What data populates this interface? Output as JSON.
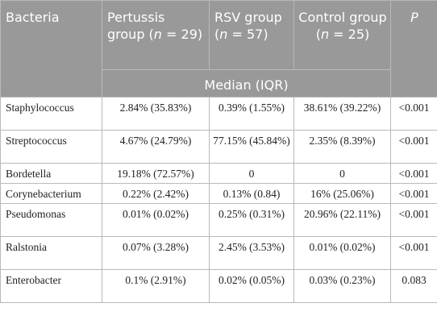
{
  "header": {
    "bacteria": "Bacteria",
    "pertussis": {
      "pre": "Pertussis group (",
      "n": "n",
      "post": " = 29)"
    },
    "rsv": {
      "pre": "RSV group (",
      "n": "n",
      "post": " = 57)"
    },
    "control": {
      "pre": "Control group (",
      "n": "n",
      "post": " = 25)"
    },
    "p": "P",
    "median_iqr": "Median (IQR)"
  },
  "rows": [
    {
      "bacteria": "Staphylococcus",
      "pertussis": "2.84% (35.83%)",
      "rsv": "0.39% (1.55%)",
      "control": "38.61% (39.22%)",
      "p": "<0.001"
    },
    {
      "bacteria": "Streptococcus",
      "pertussis": "4.67% (24.79%)",
      "rsv": "77.15% (45.84%)",
      "control": "2.35% (8.39%)",
      "p": "<0.001"
    },
    {
      "bacteria": "Bordetella",
      "pertussis": "19.18% (72.57%)",
      "rsv": "0",
      "control": "0",
      "p": "<0.001"
    },
    {
      "bacteria": "Corynebacterium",
      "pertussis": "0.22% (2.42%)",
      "rsv": "0.13% (0.84)",
      "control": "16% (25.06%)",
      "p": "<0.001"
    },
    {
      "bacteria": "Pseudomonas",
      "pertussis": "0.01% (0.02%)",
      "rsv": "0.25% (0.31%)",
      "control": "20.96% (22.11%)",
      "p": "<0.001"
    },
    {
      "bacteria": "Ralstonia",
      "pertussis": "0.07% (3.28%)",
      "rsv": "2.45% (3.53%)",
      "control": "0.01% (0.02%)",
      "p": "<0.001"
    },
    {
      "bacteria": "Enterobacter",
      "pertussis": "0.1% (2.91%)",
      "rsv": "0.02% (0.05%)",
      "control": "0.03% (0.23%)",
      "p": "0.083"
    }
  ]
}
